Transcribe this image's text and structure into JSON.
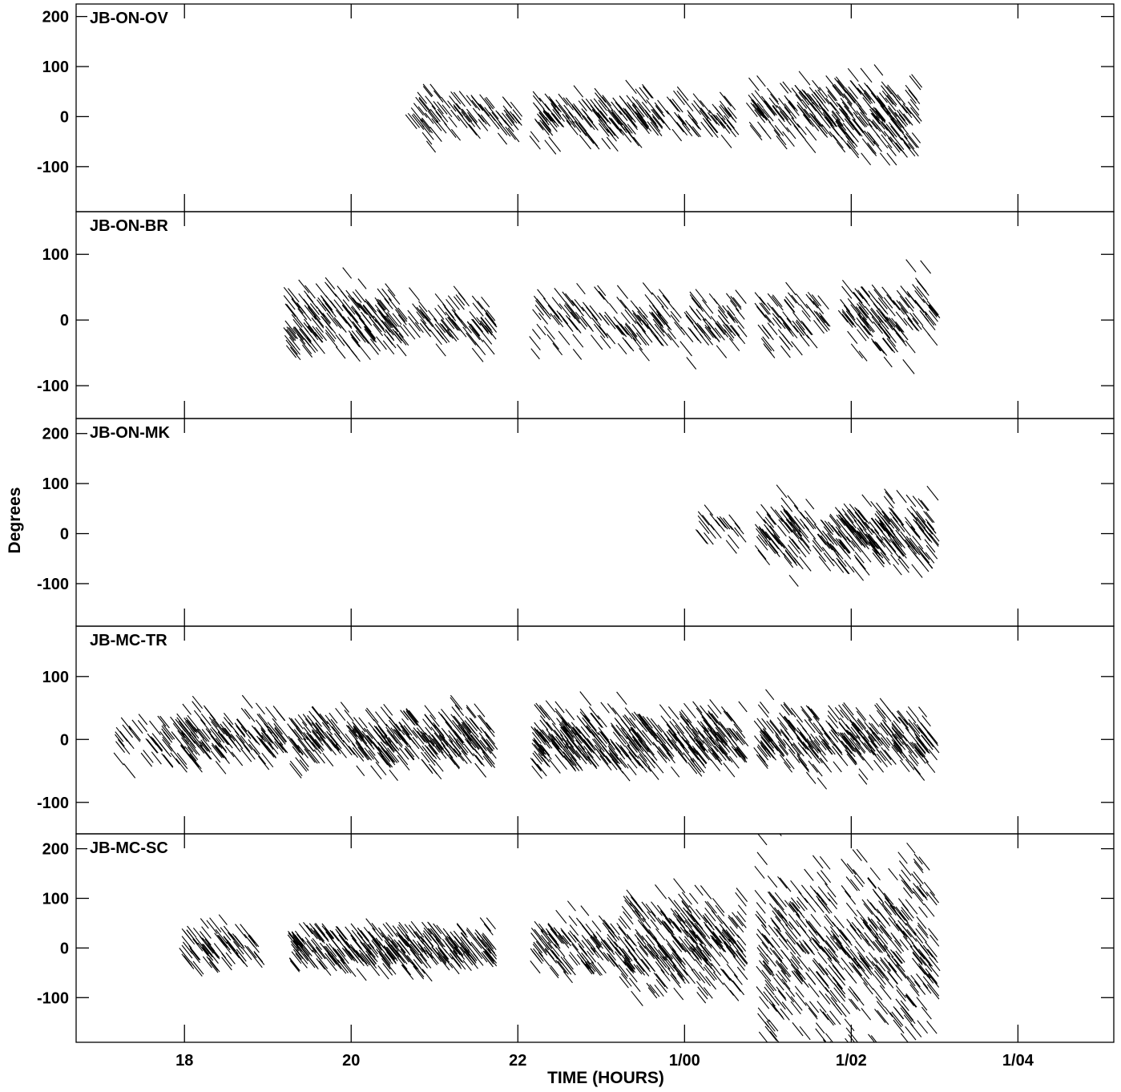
{
  "chart_data": {
    "type": "scatter",
    "xlabel": "TIME (HOURS)",
    "ylabel": "Degrees",
    "x_ticks": [
      {
        "value": 18,
        "label": "18"
      },
      {
        "value": 20,
        "label": "20"
      },
      {
        "value": 22,
        "label": "22"
      },
      {
        "value": 24,
        "label": "1/00"
      },
      {
        "value": 26,
        "label": "1/02"
      },
      {
        "value": 28,
        "label": "1/04"
      }
    ],
    "xlim": [
      16.7,
      29.15
    ],
    "panels": [
      {
        "name": "JB-ON-OV",
        "ylim": [
          -190,
          225
        ],
        "yticks": [
          {
            "value": 200,
            "label": "200"
          },
          {
            "value": 100,
            "label": "100"
          },
          {
            "value": 0,
            "label": "0"
          },
          {
            "value": -100,
            "label": "-100"
          }
        ],
        "segments": [
          [
            20.7,
            21.5,
            0,
            40,
            5
          ],
          [
            21.5,
            22.0,
            0,
            45,
            5
          ],
          [
            22.2,
            23.6,
            0,
            45,
            8
          ],
          [
            23.6,
            24.6,
            0,
            40,
            5
          ],
          [
            24.8,
            25.8,
            5,
            55,
            8
          ],
          [
            25.8,
            26.8,
            0,
            70,
            12
          ]
        ]
      },
      {
        "name": "JB-ON-BR",
        "ylim": [
          -150,
          165
        ],
        "yticks": [
          {
            "value": 100,
            "label": "100"
          },
          {
            "value": 0,
            "label": "0"
          },
          {
            "value": -100,
            "label": "-100"
          }
        ],
        "segments": [
          [
            19.25,
            20.4,
            0,
            45,
            10
          ],
          [
            20.4,
            21.7,
            0,
            40,
            6
          ],
          [
            22.2,
            23.1,
            0,
            40,
            5
          ],
          [
            23.1,
            24.7,
            0,
            40,
            6
          ],
          [
            24.9,
            25.7,
            0,
            45,
            6
          ],
          [
            25.9,
            27.0,
            0,
            50,
            8
          ]
        ]
      },
      {
        "name": "JB-ON-MK",
        "ylim": [
          -185,
          230
        ],
        "yticks": [
          {
            "value": 200,
            "label": "200"
          },
          {
            "value": 100,
            "label": "100"
          },
          {
            "value": 0,
            "label": "0"
          },
          {
            "value": -100,
            "label": "-100"
          }
        ],
        "segments": [
          [
            24.2,
            24.7,
            10,
            35,
            3
          ],
          [
            24.9,
            25.9,
            0,
            55,
            8
          ],
          [
            25.9,
            27.0,
            0,
            65,
            12
          ]
        ]
      },
      {
        "name": "JB-MC-TR",
        "ylim": [
          -150,
          180
        ],
        "yticks": [
          {
            "value": 100,
            "label": "100"
          },
          {
            "value": 0,
            "label": "0"
          },
          {
            "value": -100,
            "label": "-100"
          }
        ],
        "segments": [
          [
            17.2,
            17.6,
            0,
            35,
            3
          ],
          [
            17.6,
            19.2,
            5,
            40,
            8
          ],
          [
            19.3,
            21.7,
            0,
            40,
            10
          ],
          [
            22.2,
            24.7,
            0,
            45,
            12
          ],
          [
            24.9,
            27.0,
            0,
            45,
            10
          ]
        ]
      },
      {
        "name": "JB-MC-SC",
        "ylim": [
          -190,
          230
        ],
        "yticks": [
          {
            "value": 200,
            "label": "200"
          },
          {
            "value": 100,
            "label": "100"
          },
          {
            "value": 0,
            "label": "0"
          },
          {
            "value": -100,
            "label": "-100"
          }
        ],
        "segments": [
          [
            18.0,
            18.9,
            0,
            40,
            6
          ],
          [
            19.3,
            21.7,
            0,
            40,
            10
          ],
          [
            22.2,
            23.3,
            0,
            55,
            8
          ],
          [
            23.3,
            24.7,
            10,
            90,
            14
          ],
          [
            24.9,
            27.0,
            0,
            160,
            16
          ]
        ]
      }
    ]
  }
}
